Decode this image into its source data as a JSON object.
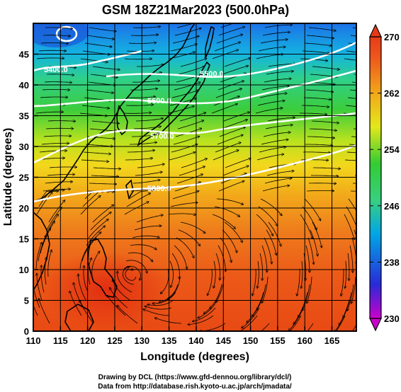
{
  "title": "GSM 18Z21Mar2023 (500.0hPa)",
  "x_axis": {
    "label": "Longitude (degrees)",
    "range": [
      110,
      169.5
    ],
    "ticks": [
      "110",
      "115",
      "120",
      "125",
      "130",
      "135",
      "140",
      "145",
      "150",
      "155",
      "160",
      "165"
    ]
  },
  "y_axis": {
    "label": "Latitude (degrees)",
    "range": [
      0,
      50
    ],
    "ticks": [
      "0",
      "5",
      "10",
      "15",
      "20",
      "25",
      "30",
      "35",
      "40",
      "45"
    ]
  },
  "colorbar": {
    "range": [
      230,
      270
    ],
    "labels": [
      "270",
      "262",
      "254",
      "246",
      "238",
      "230"
    ],
    "colors": [
      "#cc00cc",
      "#2a2ad8",
      "#00a6e6",
      "#38d080",
      "#33cc33",
      "#e3e81a",
      "#f2a81a",
      "#ee5a1c",
      "#e83a18"
    ]
  },
  "contours": [
    {
      "label": "5400.0",
      "lat_hint": 47
    },
    {
      "label": "5500.0",
      "lat_hint": 44
    },
    {
      "label": "5600.0",
      "lat_hint": 40
    },
    {
      "label": "5700.0",
      "lat_hint": 35
    },
    {
      "label": "5800.0",
      "lat_hint": 25
    }
  ],
  "footer": {
    "line1": "Drawing by DCL (https://www.gfd-dennou.org/library/dcl/)",
    "line2": "Data from http://database.rish.kyoto-u.ac.jp/arch/jmadata/"
  }
}
